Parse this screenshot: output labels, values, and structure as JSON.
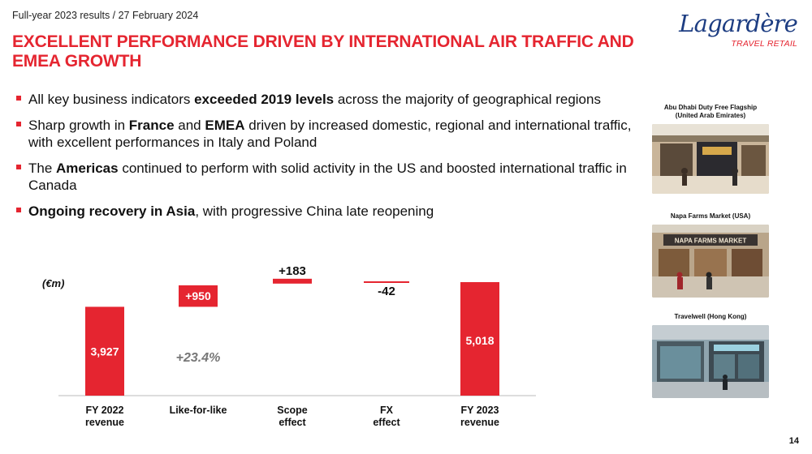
{
  "header": {
    "subtitle": "Full-year 2023 results / 27 February 2024"
  },
  "title": "EXCELLENT PERFORMANCE DRIVEN BY INTERNATIONAL AIR TRAFFIC AND EMEA GROWTH",
  "logo": {
    "main": "Lagardère",
    "sub": "TRAVEL RETAIL"
  },
  "bullets": [
    {
      "parts": [
        {
          "t": "All key business indicators ",
          "b": false
        },
        {
          "t": "exceeded 2019 levels",
          "b": true
        },
        {
          "t": " across the majority of geographical regions",
          "b": false
        }
      ]
    },
    {
      "parts": [
        {
          "t": "Sharp growth in ",
          "b": false
        },
        {
          "t": "France",
          "b": true
        },
        {
          "t": " and ",
          "b": false
        },
        {
          "t": "EMEA",
          "b": true
        },
        {
          "t": " driven by increased domestic, regional and international traffic, with excellent performances in Italy and Poland",
          "b": false
        }
      ]
    },
    {
      "parts": [
        {
          "t": "The ",
          "b": false
        },
        {
          "t": "Americas",
          "b": true
        },
        {
          "t": " continued to perform with solid activity in the US and boosted international traffic in Canada",
          "b": false
        }
      ]
    },
    {
      "parts": [
        {
          "t": "Ongoing recovery in Asia",
          "b": true
        },
        {
          "t": ", with progressive China late reopening",
          "b": false
        }
      ]
    }
  ],
  "chart_data": {
    "type": "bar",
    "subtype": "waterfall",
    "unit_label": "(€m)",
    "categories": [
      "FY 2022\nrevenue",
      "Like-for-like",
      "Scope\neffect",
      "FX\neffect",
      "FY 2023\nrevenue"
    ],
    "values": [
      3927,
      950,
      183,
      -42,
      5018
    ],
    "kinds": [
      "total",
      "delta",
      "delta",
      "delta",
      "total"
    ],
    "labels": [
      "3,927",
      "+950",
      "+183",
      "-42",
      "5,018"
    ],
    "annotation": "+23.4%",
    "colors": {
      "bar": "#e52530",
      "axis": "#bbbbbb",
      "annotation": "#777777"
    }
  },
  "photos": [
    {
      "caption": "Abu Dhabi Duty Free Flagship\n(United Arab Emirates)",
      "sign": ""
    },
    {
      "caption": "Napa Farms Market (USA)",
      "sign": "NAPA FARMS MARKET"
    },
    {
      "caption": "Travelwell (Hong Kong)",
      "sign": ""
    }
  ],
  "page_number": "14"
}
